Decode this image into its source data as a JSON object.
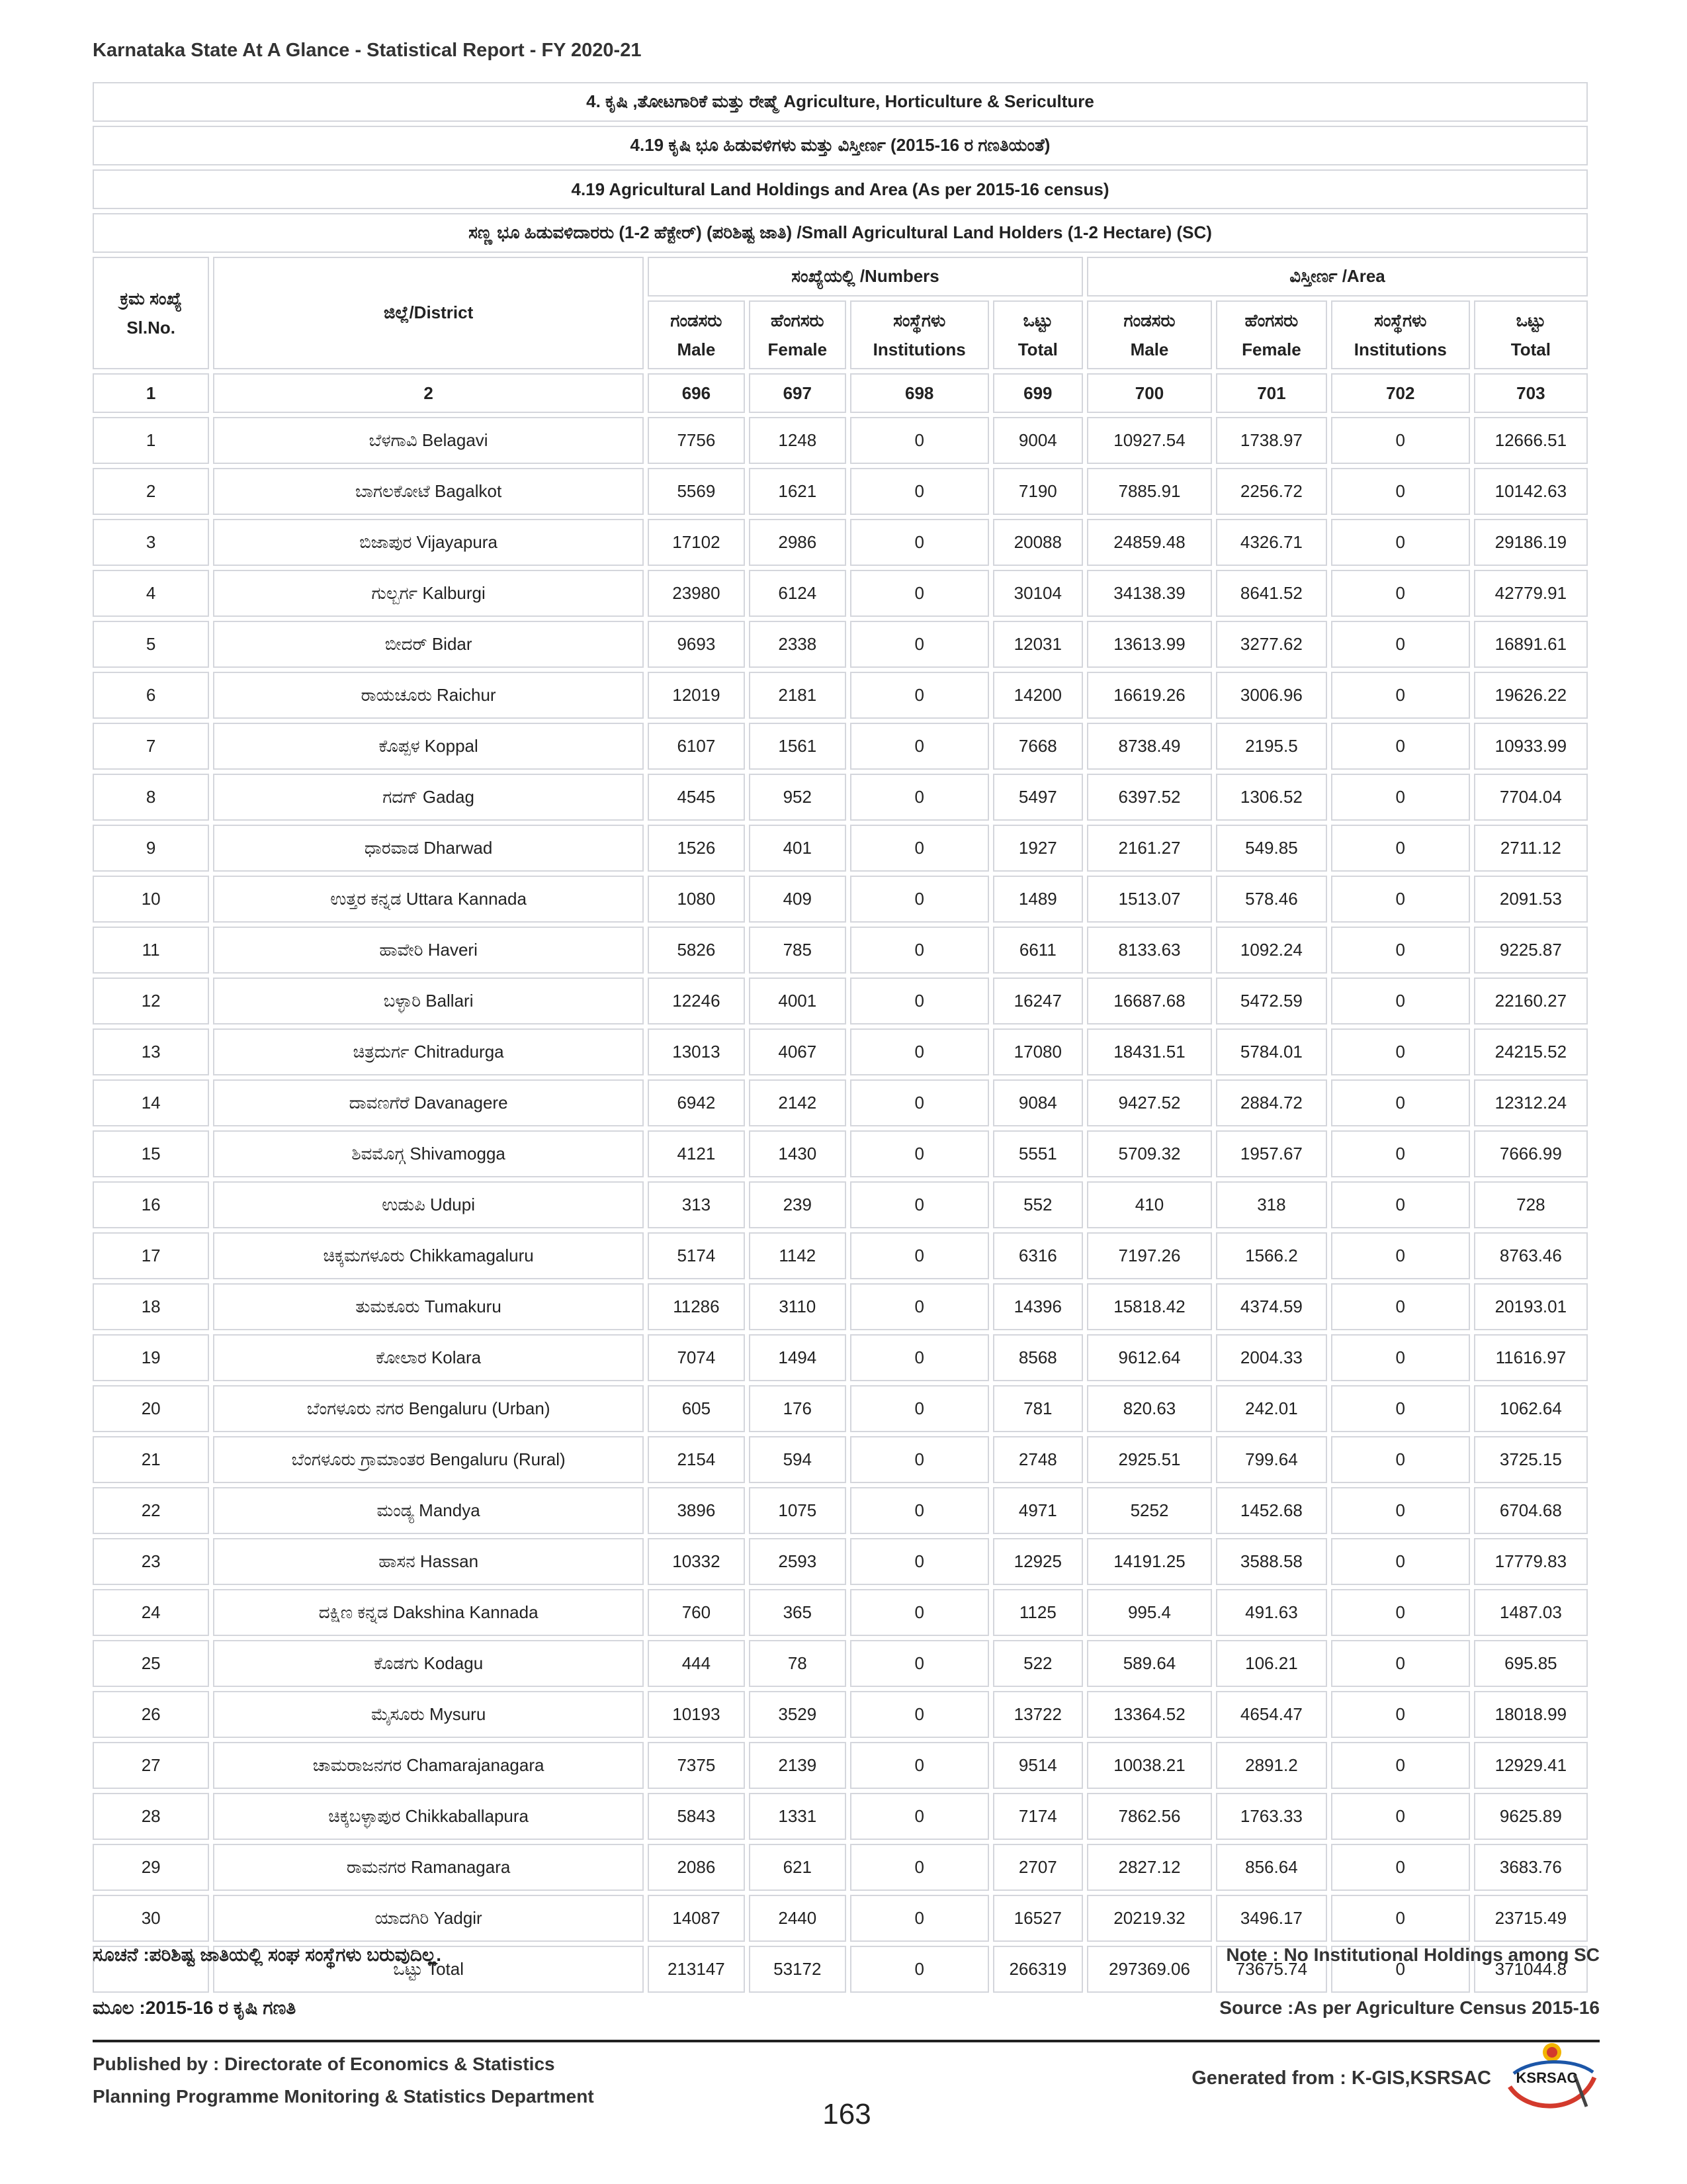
{
  "header": {
    "report_title": "Karnataka State At A Glance - Statistical Report - FY 2020-21"
  },
  "table": {
    "titles": [
      "4. ಕೃಷಿ ,ತೋಟಗಾರಿಕೆ ಮತ್ತು ರೇಷ್ಮೆ  Agriculture, Horticulture & Sericulture",
      "4.19 ಕೃಷಿ ಭೂ ಹಿಡುವಳಿಗಳು ಮತ್ತು ವಿಸ್ತೀರ್ಣ (2015-16 ರ ಗಣತಿಯಂತೆ)",
      "4.19 Agricultural Land Holdings and Area (As per 2015-16 census)",
      "ಸಣ್ಣ ಭೂ ಹಿಡುವಳಿದಾರರು (1-2 ಹೆಕ್ಟೇರ್) (ಪರಿಶಿಷ್ಟ ಜಾತಿ)  /Small Agricultural Land Holders (1-2 Hectare) (SC)"
    ],
    "headers": {
      "slno_kn": "ಕ್ರಮ ಸಂಖ್ಯೆ",
      "slno_en": "Sl.No.",
      "district": "ಜಿಲ್ಲೆ/District",
      "numbers_group": "ಸಂಖ್ಯೆಯಲ್ಲಿ  /Numbers",
      "area_group": "ವಿಸ್ತೀರ್ಣ  /Area",
      "sub": [
        {
          "kn": "ಗಂಡಸರು",
          "en": "Male"
        },
        {
          "kn": "ಹೆಂಗಸರು",
          "en": "Female"
        },
        {
          "kn": "ಸಂಸ್ಥೆಗಳು",
          "en": "Institutions"
        },
        {
          "kn": "ಒಟ್ಟು",
          "en": "Total"
        },
        {
          "kn": "ಗಂಡಸರು",
          "en": "Male"
        },
        {
          "kn": "ಹೆಂಗಸರು",
          "en": "Female"
        },
        {
          "kn": "ಸಂಸ್ಥೆಗಳು",
          "en": "Institutions"
        },
        {
          "kn": "ಒಟ್ಟು",
          "en": "Total"
        }
      ]
    },
    "column_numbers": [
      "1",
      "2",
      "696",
      "697",
      "698",
      "699",
      "700",
      "701",
      "702",
      "703"
    ],
    "rows": [
      [
        "1",
        "ಬೆಳಗಾವಿ Belagavi",
        "7756",
        "1248",
        "0",
        "9004",
        "10927.54",
        "1738.97",
        "0",
        "12666.51"
      ],
      [
        "2",
        "ಬಾಗಲಕೋಟೆ Bagalkot",
        "5569",
        "1621",
        "0",
        "7190",
        "7885.91",
        "2256.72",
        "0",
        "10142.63"
      ],
      [
        "3",
        "ಬಿಜಾಪುರ Vijayapura",
        "17102",
        "2986",
        "0",
        "20088",
        "24859.48",
        "4326.71",
        "0",
        "29186.19"
      ],
      [
        "4",
        "ಗುಲ್ಬರ್ಗ Kalburgi",
        "23980",
        "6124",
        "0",
        "30104",
        "34138.39",
        "8641.52",
        "0",
        "42779.91"
      ],
      [
        "5",
        "ಬೀದರ್ Bidar",
        "9693",
        "2338",
        "0",
        "12031",
        "13613.99",
        "3277.62",
        "0",
        "16891.61"
      ],
      [
        "6",
        "ರಾಯಚೂರು Raichur",
        "12019",
        "2181",
        "0",
        "14200",
        "16619.26",
        "3006.96",
        "0",
        "19626.22"
      ],
      [
        "7",
        "ಕೊಪ್ಪಳ Koppal",
        "6107",
        "1561",
        "0",
        "7668",
        "8738.49",
        "2195.5",
        "0",
        "10933.99"
      ],
      [
        "8",
        "ಗದಗ್ Gadag",
        "4545",
        "952",
        "0",
        "5497",
        "6397.52",
        "1306.52",
        "0",
        "7704.04"
      ],
      [
        "9",
        "ಧಾರವಾಡ Dharwad",
        "1526",
        "401",
        "0",
        "1927",
        "2161.27",
        "549.85",
        "0",
        "2711.12"
      ],
      [
        "10",
        "ಉತ್ತರ ಕನ್ನಡ Uttara Kannada",
        "1080",
        "409",
        "0",
        "1489",
        "1513.07",
        "578.46",
        "0",
        "2091.53"
      ],
      [
        "11",
        "ಹಾವೇರಿ Haveri",
        "5826",
        "785",
        "0",
        "6611",
        "8133.63",
        "1092.24",
        "0",
        "9225.87"
      ],
      [
        "12",
        "ಬಳ್ಳಾರಿ Ballari",
        "12246",
        "4001",
        "0",
        "16247",
        "16687.68",
        "5472.59",
        "0",
        "22160.27"
      ],
      [
        "13",
        "ಚಿತ್ರದುರ್ಗ Chitradurga",
        "13013",
        "4067",
        "0",
        "17080",
        "18431.51",
        "5784.01",
        "0",
        "24215.52"
      ],
      [
        "14",
        "ದಾವಣಗೆರೆ Davanagere",
        "6942",
        "2142",
        "0",
        "9084",
        "9427.52",
        "2884.72",
        "0",
        "12312.24"
      ],
      [
        "15",
        "ಶಿವಮೊಗ್ಗ Shivamogga",
        "4121",
        "1430",
        "0",
        "5551",
        "5709.32",
        "1957.67",
        "0",
        "7666.99"
      ],
      [
        "16",
        "ಉಡುಪಿ Udupi",
        "313",
        "239",
        "0",
        "552",
        "410",
        "318",
        "0",
        "728"
      ],
      [
        "17",
        "ಚಿಕ್ಕಮಗಳೂರು Chikkamagaluru",
        "5174",
        "1142",
        "0",
        "6316",
        "7197.26",
        "1566.2",
        "0",
        "8763.46"
      ],
      [
        "18",
        "ತುಮಕೂರು Tumakuru",
        "11286",
        "3110",
        "0",
        "14396",
        "15818.42",
        "4374.59",
        "0",
        "20193.01"
      ],
      [
        "19",
        "ಕೋಲಾರ Kolara",
        "7074",
        "1494",
        "0",
        "8568",
        "9612.64",
        "2004.33",
        "0",
        "11616.97"
      ],
      [
        "20",
        "ಬೆಂಗಳೂರು ನಗರ Bengaluru (Urban)",
        "605",
        "176",
        "0",
        "781",
        "820.63",
        "242.01",
        "0",
        "1062.64"
      ],
      [
        "21",
        "ಬೆಂಗಳೂರು ಗ್ರಾಮಾಂತರ Bengaluru (Rural)",
        "2154",
        "594",
        "0",
        "2748",
        "2925.51",
        "799.64",
        "0",
        "3725.15"
      ],
      [
        "22",
        "ಮಂಡ್ಯ Mandya",
        "3896",
        "1075",
        "0",
        "4971",
        "5252",
        "1452.68",
        "0",
        "6704.68"
      ],
      [
        "23",
        "ಹಾಸನ Hassan",
        "10332",
        "2593",
        "0",
        "12925",
        "14191.25",
        "3588.58",
        "0",
        "17779.83"
      ],
      [
        "24",
        "ದಕ್ಷಿಣ ಕನ್ನಡ Dakshina Kannada",
        "760",
        "365",
        "0",
        "1125",
        "995.4",
        "491.63",
        "0",
        "1487.03"
      ],
      [
        "25",
        "ಕೊಡಗು Kodagu",
        "444",
        "78",
        "0",
        "522",
        "589.64",
        "106.21",
        "0",
        "695.85"
      ],
      [
        "26",
        "ಮೈಸೂರು Mysuru",
        "10193",
        "3529",
        "0",
        "13722",
        "13364.52",
        "4654.47",
        "0",
        "18018.99"
      ],
      [
        "27",
        "ಚಾಮರಾಜನಗರ Chamarajanagara",
        "7375",
        "2139",
        "0",
        "9514",
        "10038.21",
        "2891.2",
        "0",
        "12929.41"
      ],
      [
        "28",
        "ಚಿಕ್ಕಬಳ್ಳಾಪುರ Chikkaballapura",
        "5843",
        "1331",
        "0",
        "7174",
        "7862.56",
        "1763.33",
        "0",
        "9625.89"
      ],
      [
        "29",
        "ರಾಮನಗರ Ramanagara",
        "2086",
        "621",
        "0",
        "2707",
        "2827.12",
        "856.64",
        "0",
        "3683.76"
      ],
      [
        "30",
        "ಯಾದಗಿರಿ Yadgir",
        "14087",
        "2440",
        "0",
        "16527",
        "20219.32",
        "3496.17",
        "0",
        "23715.49"
      ],
      [
        "",
        "ಒಟ್ಟು Total",
        "213147",
        "53172",
        "0",
        "266319",
        "297369.06",
        "73675.74",
        "0",
        "371044.8"
      ]
    ]
  },
  "footer": {
    "note_kn": "ಸೂಚನೆ :ಪರಿಶಿಷ್ಟ ಜಾತಿಯಲ್ಲಿ ಸಂಘ ಸಂಸ್ಥೆಗಳು ಬರುವುದಿಲ್ಲ.",
    "note_en": "Note : No Institutional Holdings among SC",
    "source_kn": "ಮೂಲ :2015-16 ರ ಕೃಷಿ ಗಣತಿ",
    "source_en": "Source :As per Agriculture Census 2015-16",
    "published_by": "Published by : Directorate of Economics & Statistics",
    "department": "Planning Programme Monitoring & Statistics Department",
    "page_number": "163",
    "generated_from": "Generated from : K-GIS,KSRSAC",
    "logo_text": "KSRSAC"
  }
}
